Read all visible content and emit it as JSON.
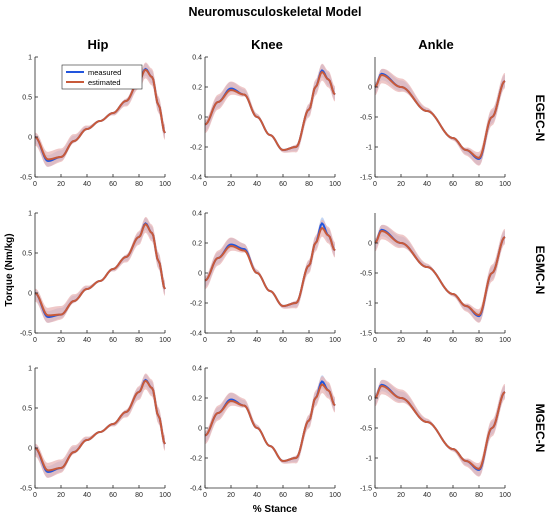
{
  "figure": {
    "title": "Neuromusculoskeletal Model",
    "xlabel": "% Stance",
    "ylabel": "Torque (Nm/kg)",
    "columns": [
      "Hip",
      "Knee",
      "Ankle"
    ],
    "rows": [
      "EGEC-N",
      "EGMC-N",
      "MGEC-N"
    ],
    "legend": {
      "measured": "measured",
      "estimated": "estimated",
      "placement": "top-left of first panel"
    },
    "colors": {
      "measured": "#2255dd",
      "estimated": "#c85a3a",
      "band_measured": "#a8c4f0",
      "band_estimated": "#e8b0b0",
      "axes": "#262626"
    }
  },
  "chart_data": [
    {
      "panel": "Hip / EGEC-N",
      "type": "line",
      "x": [
        0,
        10,
        20,
        30,
        40,
        50,
        60,
        70,
        80,
        85,
        90,
        95,
        100
      ],
      "series": [
        {
          "name": "measured",
          "values": [
            0.0,
            -0.3,
            -0.25,
            -0.05,
            0.1,
            0.2,
            0.3,
            0.45,
            0.7,
            0.85,
            0.75,
            0.4,
            0.05
          ]
        },
        {
          "name": "estimated",
          "values": [
            0.0,
            -0.28,
            -0.25,
            -0.05,
            0.1,
            0.2,
            0.3,
            0.45,
            0.7,
            0.84,
            0.75,
            0.4,
            0.05
          ]
        }
      ],
      "xlim": [
        0,
        100
      ],
      "ylim": [
        -0.5,
        1
      ],
      "yticks": [
        -0.5,
        0,
        0.5,
        1
      ],
      "xticks": [
        0,
        20,
        40,
        60,
        80,
        100
      ]
    },
    {
      "panel": "Knee / EGEC-N",
      "type": "line",
      "x": [
        0,
        10,
        20,
        30,
        40,
        50,
        60,
        70,
        80,
        85,
        90,
        95,
        100
      ],
      "series": [
        {
          "name": "measured",
          "values": [
            -0.05,
            0.1,
            0.19,
            0.15,
            0.0,
            -0.12,
            -0.22,
            -0.2,
            0.05,
            0.2,
            0.31,
            0.25,
            0.15
          ]
        },
        {
          "name": "estimated",
          "values": [
            -0.05,
            0.1,
            0.18,
            0.15,
            0.0,
            -0.12,
            -0.22,
            -0.2,
            0.05,
            0.2,
            0.3,
            0.25,
            0.15
          ]
        }
      ],
      "xlim": [
        0,
        100
      ],
      "ylim": [
        -0.4,
        0.4
      ],
      "yticks": [
        -0.4,
        -0.2,
        0,
        0.2,
        0.4
      ],
      "xticks": [
        0,
        20,
        40,
        60,
        80,
        100
      ]
    },
    {
      "panel": "Ankle / EGEC-N",
      "type": "line",
      "x": [
        0,
        5,
        20,
        40,
        60,
        70,
        80,
        90,
        100
      ],
      "series": [
        {
          "name": "measured",
          "values": [
            0.0,
            0.22,
            0.0,
            -0.4,
            -0.85,
            -1.05,
            -1.2,
            -0.5,
            0.1
          ]
        },
        {
          "name": "estimated",
          "values": [
            0.0,
            0.2,
            0.0,
            -0.4,
            -0.85,
            -1.05,
            -1.18,
            -0.5,
            0.1
          ]
        }
      ],
      "xlim": [
        0,
        100
      ],
      "ylim": [
        -1.5,
        0.5
      ],
      "yticks": [
        -1.5,
        -1,
        -0.5,
        0
      ],
      "xticks": [
        0,
        20,
        40,
        60,
        80,
        100
      ]
    },
    {
      "panel": "Hip / EGMC-N",
      "type": "line",
      "x": [
        0,
        10,
        20,
        30,
        40,
        50,
        60,
        70,
        80,
        85,
        90,
        95,
        100
      ],
      "series": [
        {
          "name": "measured",
          "values": [
            0.0,
            -0.3,
            -0.27,
            -0.1,
            0.05,
            0.15,
            0.3,
            0.45,
            0.7,
            0.87,
            0.75,
            0.4,
            0.05
          ]
        },
        {
          "name": "estimated",
          "values": [
            0.0,
            -0.28,
            -0.27,
            -0.1,
            0.05,
            0.15,
            0.3,
            0.45,
            0.7,
            0.86,
            0.75,
            0.4,
            0.05
          ]
        }
      ],
      "xlim": [
        0,
        100
      ],
      "ylim": [
        -0.5,
        1
      ],
      "yticks": [
        -0.5,
        0,
        0.5,
        1
      ],
      "xticks": [
        0,
        20,
        40,
        60,
        80,
        100
      ]
    },
    {
      "panel": "Knee / EGMC-N",
      "type": "line",
      "x": [
        0,
        10,
        20,
        30,
        40,
        50,
        60,
        70,
        80,
        85,
        90,
        95,
        100
      ],
      "series": [
        {
          "name": "measured",
          "values": [
            -0.05,
            0.1,
            0.19,
            0.16,
            0.0,
            -0.12,
            -0.22,
            -0.2,
            0.05,
            0.2,
            0.33,
            0.25,
            0.15
          ]
        },
        {
          "name": "estimated",
          "values": [
            -0.05,
            0.1,
            0.18,
            0.15,
            0.0,
            -0.12,
            -0.22,
            -0.2,
            0.05,
            0.2,
            0.3,
            0.25,
            0.15
          ]
        }
      ],
      "xlim": [
        0,
        100
      ],
      "ylim": [
        -0.4,
        0.4
      ],
      "yticks": [
        -0.4,
        -0.2,
        0,
        0.2,
        0.4
      ],
      "xticks": [
        0,
        20,
        40,
        60,
        80,
        100
      ]
    },
    {
      "panel": "Ankle / EGMC-N",
      "type": "line",
      "x": [
        0,
        5,
        20,
        40,
        60,
        70,
        80,
        90,
        100
      ],
      "series": [
        {
          "name": "measured",
          "values": [
            0.0,
            0.22,
            0.0,
            -0.4,
            -0.85,
            -1.05,
            -1.22,
            -0.5,
            0.1
          ]
        },
        {
          "name": "estimated",
          "values": [
            0.0,
            0.2,
            0.0,
            -0.4,
            -0.85,
            -1.05,
            -1.2,
            -0.5,
            0.1
          ]
        }
      ],
      "xlim": [
        0,
        100
      ],
      "ylim": [
        -1.5,
        0.5
      ],
      "yticks": [
        -1.5,
        -1,
        -0.5,
        0
      ],
      "xticks": [
        0,
        20,
        40,
        60,
        80,
        100
      ]
    },
    {
      "panel": "Hip / MGEC-N",
      "type": "line",
      "x": [
        0,
        10,
        20,
        30,
        40,
        50,
        60,
        70,
        80,
        85,
        90,
        95,
        100
      ],
      "series": [
        {
          "name": "measured",
          "values": [
            0.0,
            -0.3,
            -0.25,
            -0.05,
            0.1,
            0.2,
            0.3,
            0.45,
            0.7,
            0.85,
            0.75,
            0.4,
            0.05
          ]
        },
        {
          "name": "estimated",
          "values": [
            0.0,
            -0.28,
            -0.25,
            -0.05,
            0.1,
            0.2,
            0.3,
            0.45,
            0.7,
            0.84,
            0.75,
            0.4,
            0.05
          ]
        }
      ],
      "xlim": [
        0,
        100
      ],
      "ylim": [
        -0.5,
        1
      ],
      "yticks": [
        -0.5,
        0,
        0.5,
        1
      ],
      "xticks": [
        0,
        20,
        40,
        60,
        80,
        100
      ]
    },
    {
      "panel": "Knee / MGEC-N",
      "type": "line",
      "x": [
        0,
        10,
        20,
        30,
        40,
        50,
        60,
        70,
        80,
        85,
        90,
        95,
        100
      ],
      "series": [
        {
          "name": "measured",
          "values": [
            -0.05,
            0.1,
            0.19,
            0.15,
            0.0,
            -0.12,
            -0.22,
            -0.2,
            0.05,
            0.2,
            0.31,
            0.25,
            0.15
          ]
        },
        {
          "name": "estimated",
          "values": [
            -0.05,
            0.1,
            0.18,
            0.15,
            0.0,
            -0.12,
            -0.22,
            -0.2,
            0.05,
            0.2,
            0.29,
            0.25,
            0.15
          ]
        }
      ],
      "xlim": [
        0,
        100
      ],
      "ylim": [
        -0.4,
        0.4
      ],
      "yticks": [
        -0.4,
        -0.2,
        0,
        0.2,
        0.4
      ],
      "xticks": [
        0,
        20,
        40,
        60,
        80,
        100
      ]
    },
    {
      "panel": "Ankle / MGEC-N",
      "type": "line",
      "x": [
        0,
        5,
        20,
        40,
        60,
        70,
        80,
        90,
        100
      ],
      "series": [
        {
          "name": "measured",
          "values": [
            0.0,
            0.22,
            0.0,
            -0.4,
            -0.85,
            -1.05,
            -1.2,
            -0.5,
            0.1
          ]
        },
        {
          "name": "estimated",
          "values": [
            0.0,
            0.2,
            0.0,
            -0.4,
            -0.85,
            -1.05,
            -1.18,
            -0.5,
            0.1
          ]
        }
      ],
      "xlim": [
        0,
        100
      ],
      "ylim": [
        -1.5,
        0.5
      ],
      "yticks": [
        -1.5,
        -1,
        -0.5,
        0
      ],
      "xticks": [
        0,
        20,
        40,
        60,
        80,
        100
      ]
    }
  ]
}
